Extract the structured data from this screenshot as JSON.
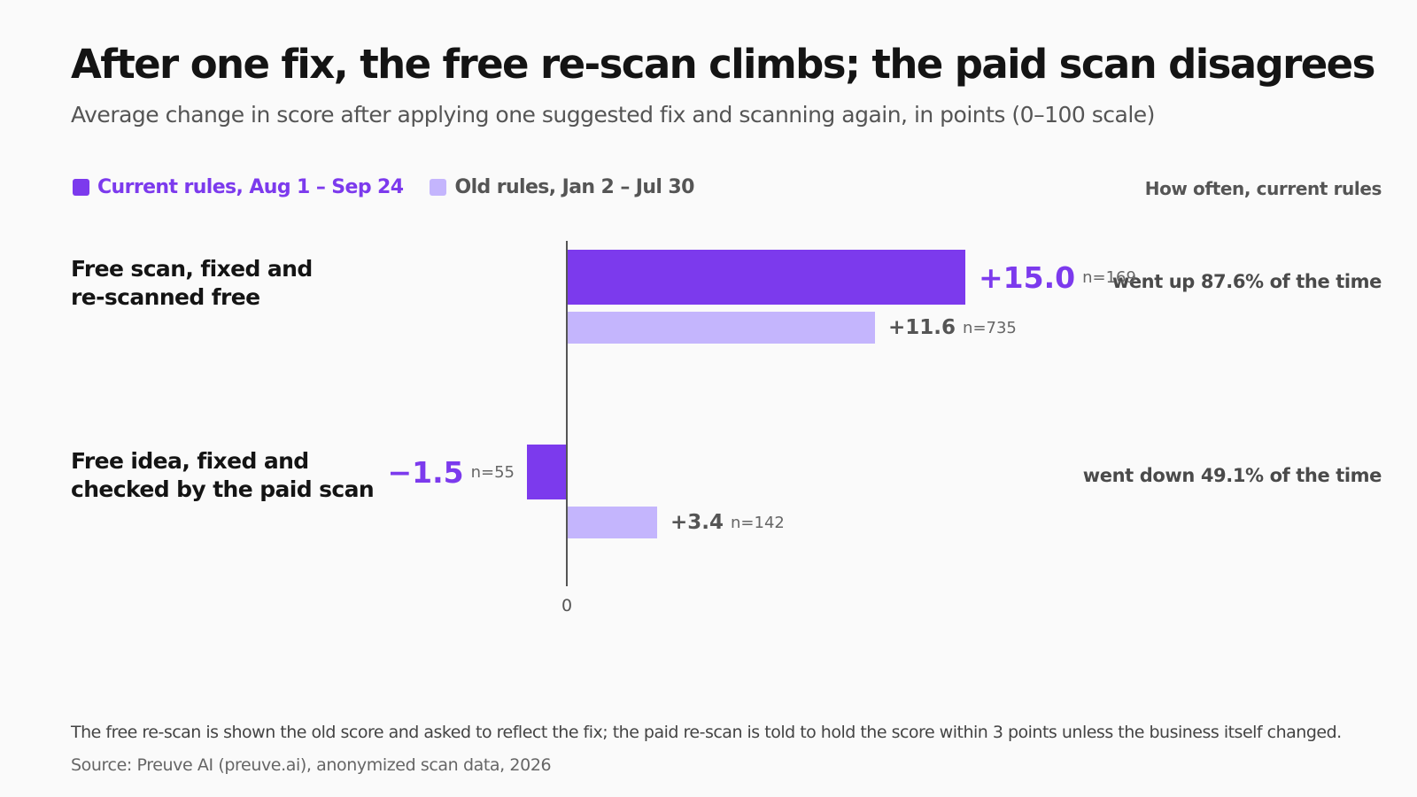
{
  "colors": {
    "current": "#7c3aed",
    "old": "#c4b5fd",
    "axis": "#555555",
    "old_text": "#555555"
  },
  "title": "After one fix, the free re-scan climbs; the paid scan disagrees",
  "subtitle": "Average change in score after applying one suggested fix and scanning again, in points (0–100 scale)",
  "legend": {
    "current": "Current rules, Aug 1 – Sep 24",
    "old": "Old rules, Jan 2 – Jul 30"
  },
  "frequency_header": "How often, current rules",
  "rows": [
    {
      "label_line1": "Free scan, fixed and",
      "label_line2": "re-scanned free",
      "frequency": "went up 87.6% of the time"
    },
    {
      "label_line1": "Free idea, fixed and",
      "label_line2": "checked by the paid scan",
      "frequency": "went down 49.1% of the time"
    }
  ],
  "footnote": "The free re-scan is shown the old score and asked to reflect the fix; the paid re-scan is told to hold the score within 3 points unless the business itself changed.",
  "source": "Source: Preuve AI (preuve.ai), anonymized scan data, 2026",
  "chart_data": {
    "type": "bar",
    "orientation": "horizontal",
    "categories": [
      "Free scan, fixed and re-scanned free",
      "Free idea, fixed and checked by the paid scan"
    ],
    "series": [
      {
        "name": "Current rules, Aug 1 – Sep 24",
        "values": [
          15.0,
          -1.5
        ],
        "labels": [
          "+15.0",
          "−1.5"
        ],
        "n_labels": [
          "n=169",
          "n=55"
        ]
      },
      {
        "name": "Old rules, Jan 2 – Jul 30",
        "values": [
          11.6,
          3.4
        ],
        "labels": [
          "+11.6",
          "+3.4"
        ],
        "n_labels": [
          "n=735",
          "n=142"
        ]
      }
    ],
    "zero_label": "0",
    "grid": false,
    "legend_position": "top-left"
  }
}
